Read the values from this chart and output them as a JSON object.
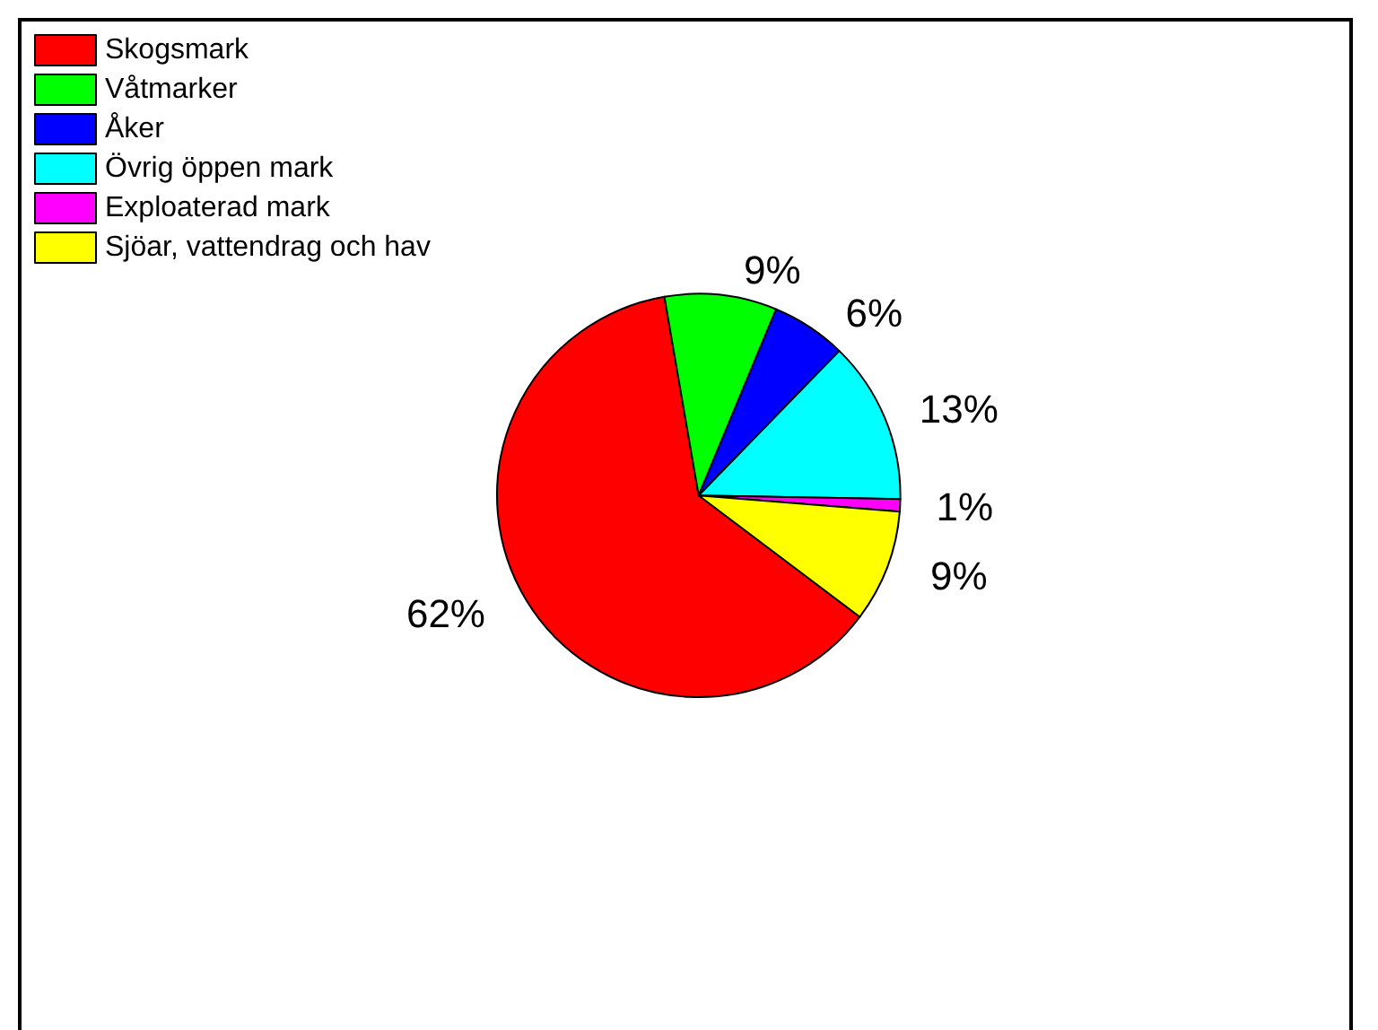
{
  "chart_data": {
    "type": "pie",
    "categories": [
      "Skogsmark",
      "Våtmarker",
      "Åker",
      "Övrig öppen mark",
      "Exploaterad mark",
      "Sjöar, vattendrag och hav"
    ],
    "values": [
      62,
      9,
      6,
      13,
      1,
      9
    ],
    "value_labels": [
      "62%",
      "9%",
      "6%",
      "13%",
      "1%",
      "9%"
    ],
    "colors": [
      "#ff0000",
      "#00ff00",
      "#0000ff",
      "#00ffff",
      "#ff00ff",
      "#ffff00"
    ],
    "legend": "top left"
  }
}
